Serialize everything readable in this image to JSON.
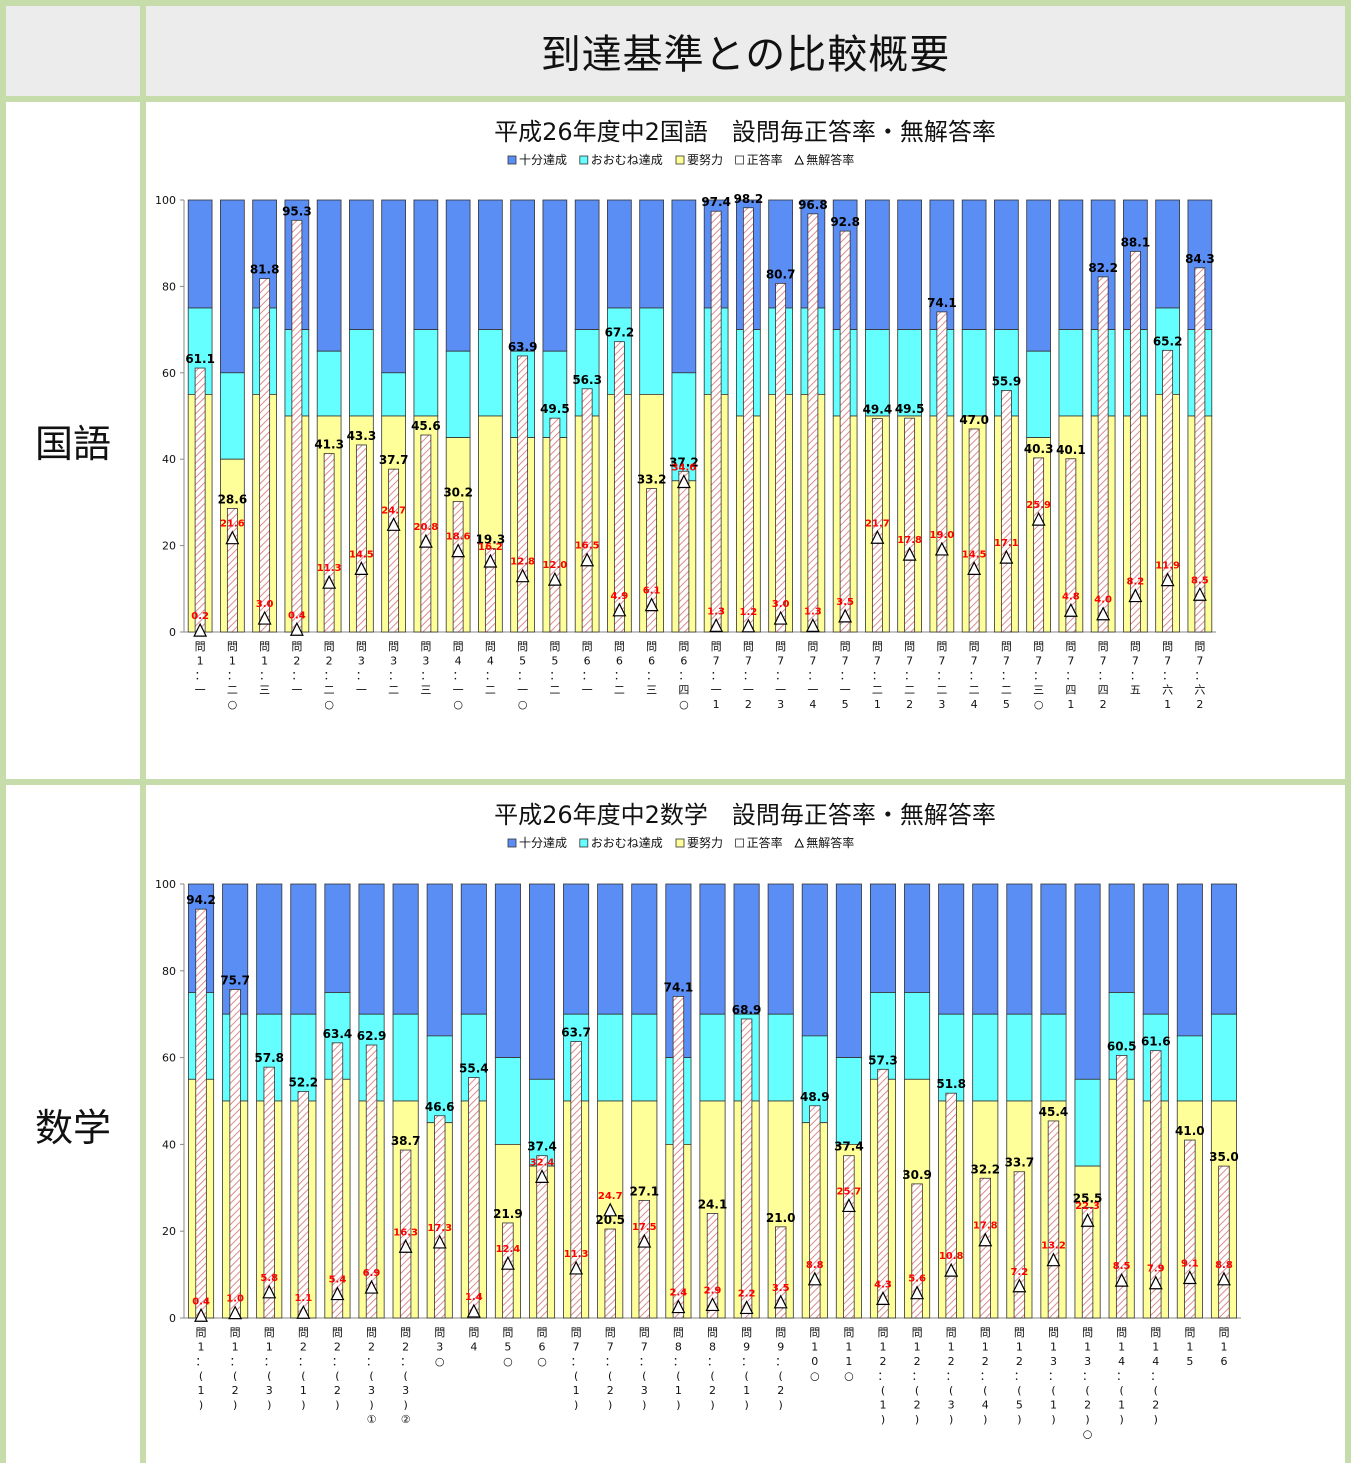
{
  "page_title": "到達基準との比較概要",
  "rows": [
    {
      "label": "国語"
    },
    {
      "label": "数学"
    }
  ],
  "colors": {
    "full": "#5b8ef5",
    "mostly": "#66ffff",
    "effort": "#ffff99",
    "correct_fill": "#ffffff",
    "correct_hatch": "#e08a8a",
    "noans_label": "#ff0000",
    "value_label": "#000000"
  },
  "chart_data": [
    {
      "type": "bar",
      "title": "平成26年度中2国語　設問毎正答率・無解答率",
      "legend": [
        "十分達成",
        "おおむね達成",
        "要努力",
        "正答率",
        "無解答率"
      ],
      "ylim": [
        0,
        100
      ],
      "yticks": [
        "0",
        "20",
        "40",
        "60",
        "80",
        "100"
      ],
      "categories": [
        [
          "問",
          "1",
          "：",
          "一"
        ],
        [
          "問",
          "1",
          "：",
          "二",
          "○"
        ],
        [
          "問",
          "1",
          "：",
          "三"
        ],
        [
          "問",
          "2",
          "：",
          "一"
        ],
        [
          "問",
          "2",
          "：",
          "二",
          "○"
        ],
        [
          "問",
          "3",
          "：",
          "一"
        ],
        [
          "問",
          "3",
          "：",
          "二"
        ],
        [
          "問",
          "3",
          "：",
          "三"
        ],
        [
          "問",
          "4",
          "：",
          "一",
          "○"
        ],
        [
          "問",
          "4",
          "：",
          "二"
        ],
        [
          "問",
          "5",
          "：",
          "一",
          "○"
        ],
        [
          "問",
          "5",
          "：",
          "二"
        ],
        [
          "問",
          "6",
          "：",
          "一"
        ],
        [
          "問",
          "6",
          "：",
          "二"
        ],
        [
          "問",
          "6",
          "：",
          "三"
        ],
        [
          "問",
          "6",
          "：",
          "四",
          "○"
        ],
        [
          "問",
          "7",
          "：",
          "一",
          "1"
        ],
        [
          "問",
          "7",
          "：",
          "一",
          "2"
        ],
        [
          "問",
          "7",
          "：",
          "一",
          "3"
        ],
        [
          "問",
          "7",
          "：",
          "一",
          "4"
        ],
        [
          "問",
          "7",
          "：",
          "一",
          "5"
        ],
        [
          "問",
          "7",
          "：",
          "二",
          "1"
        ],
        [
          "問",
          "7",
          "：",
          "二",
          "2"
        ],
        [
          "問",
          "7",
          "：",
          "二",
          "3"
        ],
        [
          "問",
          "7",
          "：",
          "二",
          "4"
        ],
        [
          "問",
          "7",
          "：",
          "二",
          "5"
        ],
        [
          "問",
          "7",
          "：",
          "三",
          "○"
        ],
        [
          "問",
          "7",
          "：",
          "四",
          "1"
        ],
        [
          "問",
          "7",
          "：",
          "四",
          "2"
        ],
        [
          "問",
          "7",
          "：",
          "五"
        ],
        [
          "問",
          "7",
          "：",
          "六",
          "1"
        ],
        [
          "問",
          "7",
          "：",
          "六",
          "2"
        ]
      ],
      "effort_top": [
        55,
        40,
        55,
        50,
        50,
        50,
        50,
        50,
        45,
        50,
        45,
        45,
        50,
        55,
        55,
        35,
        55,
        50,
        55,
        55,
        50,
        50,
        50,
        50,
        50,
        50,
        45,
        50,
        50,
        50,
        55,
        50
      ],
      "mostly_top": [
        75,
        60,
        75,
        70,
        65,
        70,
        60,
        70,
        65,
        70,
        65,
        65,
        70,
        75,
        75,
        60,
        75,
        70,
        75,
        75,
        70,
        70,
        70,
        70,
        70,
        70,
        65,
        70,
        70,
        70,
        75,
        70
      ],
      "correct_rate": [
        61.1,
        28.6,
        81.8,
        95.3,
        41.3,
        43.3,
        37.7,
        45.6,
        30.2,
        19.3,
        63.9,
        49.5,
        56.3,
        67.2,
        33.2,
        37.2,
        97.4,
        98.2,
        80.7,
        96.8,
        92.8,
        49.4,
        49.5,
        74.1,
        47.0,
        55.9,
        40.3,
        40.1,
        82.2,
        88.1,
        65.2,
        84.3
      ],
      "correct_labels": [
        "61.1",
        "28.6",
        "81.8",
        "95.3",
        "41.3",
        "43.3",
        "37.7",
        "45.6",
        "30.2",
        "19.3",
        "63.9",
        "49.5",
        "56.3",
        "67.2",
        "33.2",
        "37.2",
        "97.4",
        "98.2",
        "80.7",
        "96.8",
        "92.8",
        "49.4",
        "49.5",
        "74.1",
        "47.0",
        "55.9",
        "40.3",
        "40.1",
        "82.2",
        "88.1",
        "65.2",
        "84.3"
      ],
      "noanswer_rate": [
        0.2,
        21.6,
        3.0,
        0.4,
        11.3,
        14.5,
        24.7,
        20.8,
        18.6,
        16.2,
        12.8,
        12.0,
        16.5,
        4.9,
        6.1,
        34.6,
        1.3,
        1.2,
        3.0,
        1.3,
        3.5,
        21.7,
        17.8,
        19.0,
        14.5,
        17.1,
        25.9,
        4.8,
        4.0,
        8.2,
        11.9,
        8.5
      ],
      "noanswer_labels": [
        "0.2",
        "21.6",
        "3.0",
        "0.4",
        "11.3",
        "14.5",
        "24.7",
        "20.8",
        "18.6",
        "16.2",
        "12.8",
        "12.0",
        "16.5",
        "4.9",
        "6.1",
        "34.6",
        "1.3",
        "1.2",
        "3.0",
        "1.3",
        "3.5",
        "21.7",
        "17.8",
        "19.0",
        "14.5",
        "17.1",
        "25.9",
        "4.8",
        "4.0",
        "8.2",
        "11.9",
        "8.5"
      ]
    },
    {
      "type": "bar",
      "title": "平成26年度中2数学　設問毎正答率・無解答率",
      "legend": [
        "十分達成",
        "おおむね達成",
        "要努力",
        "正答率",
        "無解答率"
      ],
      "ylim": [
        0,
        100
      ],
      "yticks": [
        "0",
        "20",
        "40",
        "60",
        "80",
        "100"
      ],
      "categories": [
        [
          "問",
          "1",
          "：",
          "(",
          "1",
          ")"
        ],
        [
          "問",
          "1",
          "：",
          "(",
          "2",
          ")"
        ],
        [
          "問",
          "1",
          "：",
          "(",
          "3",
          ")"
        ],
        [
          "問",
          "2",
          "：",
          "(",
          "1",
          ")"
        ],
        [
          "問",
          "2",
          "：",
          "(",
          "2",
          ")"
        ],
        [
          "問",
          "2",
          "：",
          "(",
          "3",
          ")",
          "①"
        ],
        [
          "問",
          "2",
          "：",
          "(",
          "3",
          ")",
          "②"
        ],
        [
          "問",
          "3",
          "○"
        ],
        [
          "問",
          "4"
        ],
        [
          "問",
          "5",
          "○"
        ],
        [
          "問",
          "6",
          "○"
        ],
        [
          "問",
          "7",
          "：",
          "(",
          "1",
          ")"
        ],
        [
          "問",
          "7",
          "：",
          "(",
          "2",
          ")"
        ],
        [
          "問",
          "7",
          "：",
          "(",
          "3",
          ")"
        ],
        [
          "問",
          "8",
          "：",
          "(",
          "1",
          ")"
        ],
        [
          "問",
          "8",
          "：",
          "(",
          "2",
          ")"
        ],
        [
          "問",
          "9",
          "：",
          "(",
          "1",
          ")"
        ],
        [
          "問",
          "9",
          "：",
          "(",
          "2",
          ")"
        ],
        [
          "問",
          "1",
          "0",
          "○"
        ],
        [
          "問",
          "1",
          "1",
          "○"
        ],
        [
          "問",
          "1",
          "2",
          "：",
          "(",
          "1",
          ")"
        ],
        [
          "問",
          "1",
          "2",
          "：",
          "(",
          "2",
          ")"
        ],
        [
          "問",
          "1",
          "2",
          "：",
          "(",
          "3",
          ")"
        ],
        [
          "問",
          "1",
          "2",
          "：",
          "(",
          "4",
          ")"
        ],
        [
          "問",
          "1",
          "2",
          "：",
          "(",
          "5",
          ")"
        ],
        [
          "問",
          "1",
          "3",
          "：",
          "(",
          "1",
          ")"
        ],
        [
          "問",
          "1",
          "3",
          "：",
          "(",
          "2",
          ")",
          "○"
        ],
        [
          "問",
          "1",
          "4",
          "：",
          "(",
          "1",
          ")"
        ],
        [
          "問",
          "1",
          "4",
          "：",
          "(",
          "2",
          ")"
        ],
        [
          "問",
          "1",
          "5"
        ],
        [
          "問",
          "1",
          "6"
        ]
      ],
      "effort_top": [
        55,
        50,
        50,
        50,
        55,
        50,
        50,
        45,
        50,
        40,
        35,
        50,
        50,
        50,
        40,
        50,
        50,
        50,
        45,
        40,
        55,
        55,
        50,
        50,
        50,
        50,
        35,
        55,
        50,
        50,
        50
      ],
      "mostly_top": [
        75,
        70,
        70,
        70,
        75,
        70,
        70,
        65,
        70,
        60,
        55,
        70,
        70,
        70,
        60,
        70,
        70,
        70,
        65,
        60,
        75,
        75,
        70,
        70,
        70,
        70,
        55,
        75,
        70,
        65,
        70
      ],
      "correct_rate": [
        94.2,
        75.7,
        57.8,
        52.2,
        63.4,
        62.9,
        38.7,
        46.6,
        55.4,
        21.9,
        37.4,
        63.7,
        20.5,
        27.1,
        74.1,
        24.1,
        68.9,
        21.0,
        48.9,
        37.4,
        57.3,
        30.9,
        51.8,
        32.2,
        33.7,
        45.4,
        25.5,
        60.5,
        61.6,
        41.0,
        35.0
      ],
      "correct_labels": [
        "94.2",
        "75.7",
        "57.8",
        "52.2",
        "63.4",
        "62.9",
        "38.7",
        "46.6",
        "55.4",
        "21.9",
        "37.4",
        "63.7",
        "20.5",
        "27.1",
        "74.1",
        "24.1",
        "68.9",
        "21.0",
        "48.9",
        "37.4",
        "57.3",
        "30.9",
        "51.8",
        "32.2",
        "33.7",
        "45.4",
        "25.5",
        "60.5",
        "61.6",
        "41.0",
        "35.0"
      ],
      "noanswer_rate": [
        0.4,
        1.0,
        5.8,
        1.1,
        5.4,
        6.9,
        16.3,
        17.3,
        1.4,
        12.4,
        32.4,
        11.3,
        24.7,
        17.5,
        2.4,
        2.9,
        2.2,
        3.5,
        8.8,
        25.7,
        4.3,
        5.6,
        10.8,
        17.8,
        7.2,
        13.2,
        22.3,
        8.5,
        7.9,
        9.1,
        8.8
      ],
      "noanswer_labels": [
        "0.4",
        "1.0",
        "5.8",
        "1.1",
        "5.4",
        "6.9",
        "16.3",
        "17.3",
        "1.4",
        "12.4",
        "32.4",
        "11.3",
        "24.7",
        "17.5",
        "2.4",
        "2.9",
        "2.2",
        "3.5",
        "8.8",
        "25.7",
        "4.3",
        "5.6",
        "10.8",
        "17.8",
        "7.2",
        "13.2",
        "22.3",
        "8.5",
        "7.9",
        "9.1",
        "8.8"
      ]
    }
  ]
}
